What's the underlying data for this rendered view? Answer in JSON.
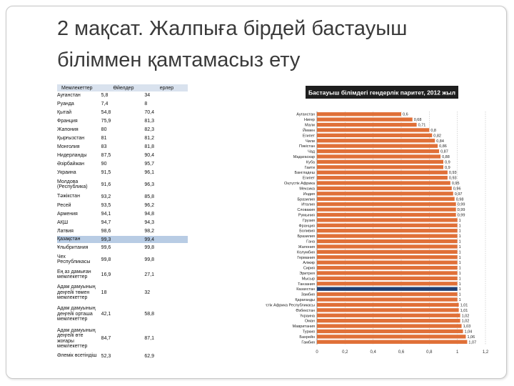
{
  "slide": {
    "title": "2 мақсат. Жалпыға бірдей бастауыш біліммен қамтамасыз ету"
  },
  "table": {
    "headers": [
      "Мемлекеттер",
      "Өйелдер",
      "ерлер"
    ],
    "highlight_row": "Қазақстан",
    "rows": [
      {
        "country": "Ауғанстан",
        "women": "5,8",
        "men": "34"
      },
      {
        "country": "Руанда",
        "women": "7,4",
        "men": "8"
      },
      {
        "country": "Қытай",
        "women": "54,8",
        "men": "70,4"
      },
      {
        "country": "Франция",
        "women": "75,9",
        "men": "81,3"
      },
      {
        "country": "Жапония",
        "women": "80",
        "men": "82,3"
      },
      {
        "country": "Қырғызстан",
        "women": "81",
        "men": "81,2"
      },
      {
        "country": "Монголия",
        "women": "83",
        "men": "81,8"
      },
      {
        "country": "Нидерланды",
        "women": "87,5",
        "men": "90,4"
      },
      {
        "country": "Әзірбайжан",
        "women": "90",
        "men": "95,7"
      },
      {
        "country": "Украина",
        "women": "91,5",
        "men": "96,1"
      },
      {
        "country": "Молдова (Республика)",
        "women": "91,6",
        "men": "96,3"
      },
      {
        "country": "Тәжікстан",
        "women": "93,2",
        "men": "85,8"
      },
      {
        "country": "Ресей",
        "women": "93,5",
        "men": "96,2"
      },
      {
        "country": "Армения",
        "women": "94,1",
        "men": "94,8"
      },
      {
        "country": "АҚШ",
        "women": "94,7",
        "men": "94,3"
      },
      {
        "country": "Латвия",
        "women": "98,6",
        "men": "98,2"
      },
      {
        "country": "Қазақстан",
        "women": "99,3",
        "men": "99,4"
      },
      {
        "country": "Ұлыбритания",
        "women": "99,6",
        "men": "99,8"
      },
      {
        "country": "Чех Республикасы",
        "women": "99,8",
        "men": "99,8"
      },
      {
        "country": "Ең аз дамыған мемлекеттер",
        "women": "16,9",
        "men": "27,1"
      },
      {
        "country": "Адам дамуының деңгейі төмен мемлекеттер",
        "women": "18",
        "men": "32"
      },
      {
        "country": "Адам дамуының деңгейі орташа мемлекеттер",
        "women": "42,1",
        "men": "58,8"
      },
      {
        "country": "Адам дамуының деңгейі өте жоғары мемлекеттер",
        "women": "84,7",
        "men": "87,1"
      },
      {
        "country": "Әлемік өсетіндіш",
        "women": "52,3",
        "men": "62,9"
      }
    ]
  },
  "chart_data": {
    "type": "bar",
    "orientation": "horizontal",
    "title": "Бастауыш білімдегі гендерлік паритет, 2012 жыл",
    "categories": [
      "Ауғанстан",
      "Нигер",
      "Мали",
      "Йемен",
      "Египет",
      "Чили",
      "Пәкістан",
      "Чад",
      "Мадагаскар",
      "Куба",
      "Гаити",
      "Бангладеш",
      "Египет",
      "Оңтүстік Африка",
      "Мексика",
      "Индия",
      "Бразилия",
      "Италия",
      "Словакия",
      "Румыния",
      "Грузия",
      "Франция",
      "Боливия",
      "Бразилия",
      "Гана",
      "Жапония",
      "Колумбия",
      "Германия",
      "Алжир",
      "Сирия",
      "Эритрея",
      "Мысыр",
      "Танзания",
      "Казахстан",
      "Замбия",
      "Қарағанды",
      "Оңтүстік Африка Республикасы",
      "Өзбекстан",
      "Үкраина",
      "Оман",
      "Мавритания",
      "Туркия",
      "Бахрейн",
      "Гамбия"
    ],
    "values": [
      0.6,
      0.68,
      0.71,
      0.8,
      0.82,
      0.84,
      0.86,
      0.87,
      0.88,
      0.9,
      0.9,
      0.93,
      0.93,
      0.95,
      0.96,
      0.97,
      0.98,
      0.99,
      0.99,
      0.99,
      1.0,
      1.0,
      1.0,
      1.0,
      1.0,
      1.0,
      1.0,
      1.0,
      1.0,
      1.0,
      1.0,
      1.0,
      1.0,
      1.0,
      1.0,
      1.0,
      1.01,
      1.01,
      1.02,
      1.02,
      1.03,
      1.04,
      1.06,
      1.07
    ],
    "value_labels": [
      "0,6",
      "0,68",
      "0,71",
      "0,8",
      "0,82",
      "0,84",
      "0,86",
      "0,87",
      "0,88",
      "0,9",
      "0,9",
      "0,93",
      "0,93",
      "0,95",
      "0,96",
      "0,97",
      "0,98",
      "0,99",
      "0,99",
      "0,99",
      "1",
      "1",
      "1",
      "1",
      "1",
      "1",
      "1",
      "1",
      "1",
      "1",
      "1",
      "1",
      "1",
      "1",
      "1",
      "1",
      "1,01",
      "1,01",
      "1,02",
      "1,02",
      "1,03",
      "1,04",
      "1,06",
      "1,07"
    ],
    "highlight_category": "Казахстан",
    "xlim": [
      0,
      1.2
    ],
    "xticks": [
      "0",
      "0,2",
      "0,4",
      "0,6",
      "0,8",
      "1",
      "1,2"
    ],
    "colors": {
      "bar": "#e07038",
      "highlight": "#1f3f73",
      "title_bg": "#1e1e1e"
    }
  }
}
